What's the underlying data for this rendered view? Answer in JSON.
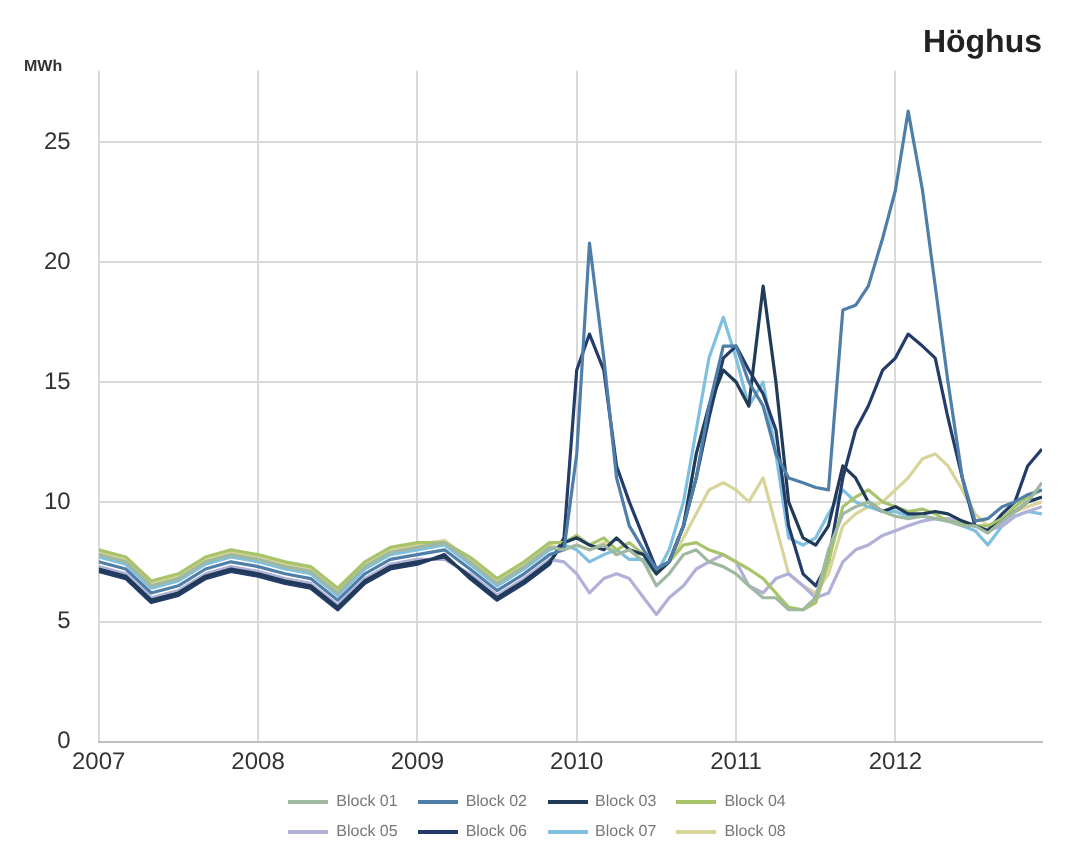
{
  "chart_data": {
    "type": "line",
    "title": "Höghus",
    "ylabel": "MWh",
    "x": [
      2007,
      2007.17,
      2007.33,
      2007.5,
      2007.67,
      2007.83,
      2008,
      2008.17,
      2008.33,
      2008.5,
      2008.67,
      2008.83,
      2009,
      2009.17,
      2009.33,
      2009.5,
      2009.67,
      2009.83,
      2009.92,
      2010,
      2010.08,
      2010.17,
      2010.25,
      2010.33,
      2010.42,
      2010.5,
      2010.58,
      2010.67,
      2010.75,
      2010.83,
      2010.92,
      2011,
      2011.08,
      2011.17,
      2011.25,
      2011.33,
      2011.42,
      2011.5,
      2011.58,
      2011.67,
      2011.75,
      2011.83,
      2011.92,
      2012,
      2012.08,
      2012.17,
      2012.25,
      2012.33,
      2012.42,
      2012.5,
      2012.58,
      2012.67,
      2012.75,
      2012.83,
      2012.92
    ],
    "series": [
      {
        "name": "Block 01",
        "color": "#9fb8a0",
        "values": [
          7.8,
          7.5,
          6.5,
          6.8,
          7.5,
          7.8,
          7.6,
          7.3,
          7.1,
          6.2,
          7.3,
          7.9,
          8.1,
          8.3,
          7.5,
          6.6,
          7.3,
          8.1,
          8.0,
          8.2,
          8.0,
          8.2,
          7.8,
          8.0,
          7.5,
          6.5,
          7.0,
          7.8,
          8.0,
          7.5,
          7.3,
          7.0,
          6.5,
          6.0,
          6.0,
          5.5,
          5.5,
          6.0,
          8.0,
          9.5,
          9.8,
          10.0,
          9.6,
          9.4,
          9.3,
          9.4,
          9.3,
          9.2,
          9.0,
          9.0,
          8.7,
          9.2,
          9.6,
          10.0,
          10.8
        ]
      },
      {
        "name": "Block 02",
        "color": "#4f7fa8",
        "values": [
          7.5,
          7.2,
          6.2,
          6.5,
          7.2,
          7.5,
          7.3,
          7.0,
          6.8,
          5.9,
          7.0,
          7.6,
          7.8,
          8.0,
          7.2,
          6.3,
          7.0,
          7.8,
          8.0,
          12,
          20.8,
          16,
          11,
          9,
          8,
          7.2,
          7.5,
          9,
          11,
          14,
          16.5,
          16.5,
          15,
          14,
          12,
          11,
          10.8,
          10.6,
          10.5,
          18,
          18.2,
          19,
          21,
          23,
          26.3,
          23,
          19,
          15,
          11,
          9.2,
          9.3,
          9.8,
          10,
          10.3,
          10.5
        ]
      },
      {
        "name": "Block 03",
        "color": "#1f3b57",
        "values": [
          7.2,
          6.9,
          5.9,
          6.2,
          6.9,
          7.2,
          7.0,
          6.7,
          6.5,
          5.6,
          6.7,
          7.3,
          7.5,
          7.7,
          6.9,
          6.0,
          6.7,
          7.5,
          8.3,
          8.5,
          8.2,
          8.0,
          8.5,
          8.0,
          7.8,
          7.0,
          7.5,
          9,
          12,
          14,
          15.5,
          15,
          14,
          19,
          15,
          10,
          8.5,
          8.2,
          9.0,
          11.5,
          11,
          10,
          9.6,
          9.8,
          9.5,
          9.5,
          9.6,
          9.5,
          9.2,
          9.0,
          8.8,
          9.2,
          9.6,
          10,
          10.2
        ]
      },
      {
        "name": "Block 04",
        "color": "#a8c46a",
        "values": [
          8.0,
          7.7,
          6.7,
          7.0,
          7.7,
          8.0,
          7.8,
          7.5,
          7.3,
          6.4,
          7.5,
          8.1,
          8.3,
          8.3,
          7.7,
          6.8,
          7.5,
          8.3,
          8.3,
          8.6,
          8.2,
          8.5,
          8.0,
          8.3,
          7.8,
          7.0,
          7.5,
          8.2,
          8.3,
          8.0,
          7.8,
          7.5,
          7.2,
          6.8,
          6.2,
          5.6,
          5.5,
          5.8,
          7.5,
          9.8,
          10.2,
          10.5,
          10.0,
          9.8,
          9.6,
          9.7,
          9.5,
          9.2,
          9.1,
          9.0,
          9.0,
          9.3,
          9.8,
          10.2,
          10.5
        ]
      },
      {
        "name": "Block 05",
        "color": "#b0b0d8",
        "values": [
          7.3,
          7.0,
          6.0,
          6.3,
          7.0,
          7.3,
          7.1,
          6.8,
          6.6,
          5.7,
          6.8,
          7.4,
          7.6,
          7.6,
          7.0,
          6.1,
          6.8,
          7.6,
          7.5,
          7.0,
          6.2,
          6.8,
          7.0,
          6.8,
          6.0,
          5.3,
          6.0,
          6.5,
          7.2,
          7.5,
          7.8,
          7.5,
          6.5,
          6.2,
          6.8,
          7.0,
          6.5,
          6.0,
          6.2,
          7.5,
          8.0,
          8.2,
          8.6,
          8.8,
          9.0,
          9.2,
          9.3,
          9.3,
          9.2,
          9.0,
          8.8,
          9.0,
          9.4,
          9.6,
          9.8
        ]
      },
      {
        "name": "Block 06",
        "color": "#243c6a",
        "values": [
          7.1,
          6.8,
          5.8,
          6.1,
          6.8,
          7.1,
          6.9,
          6.6,
          6.4,
          5.5,
          6.6,
          7.2,
          7.4,
          7.8,
          6.8,
          5.9,
          6.6,
          7.4,
          8.5,
          15.5,
          17,
          15.5,
          11.5,
          10,
          8.5,
          7.2,
          7.5,
          9,
          11,
          13.5,
          16,
          16.5,
          15.5,
          14.5,
          13,
          9,
          7.0,
          6.5,
          7.5,
          11,
          13,
          14,
          15.5,
          16.0,
          17.0,
          16.5,
          16.0,
          13.5,
          11,
          9.0,
          8.8,
          9.5,
          10,
          11.5,
          12.2
        ]
      },
      {
        "name": "Block 07",
        "color": "#7fc0e0",
        "values": [
          7.7,
          7.4,
          6.4,
          6.7,
          7.4,
          7.7,
          7.5,
          7.2,
          7.0,
          6.1,
          7.2,
          7.8,
          8.0,
          8.2,
          7.4,
          6.5,
          7.2,
          8.0,
          8.2,
          8.0,
          7.5,
          7.8,
          8.0,
          7.6,
          7.6,
          7.0,
          8.0,
          10,
          13,
          16,
          17.7,
          16,
          14,
          15,
          12,
          8.5,
          8.2,
          8.5,
          9.5,
          10.5,
          10,
          9.8,
          9.6,
          9.6,
          9.4,
          9.4,
          9.3,
          9.2,
          9.0,
          8.8,
          8.2,
          9.0,
          9.4,
          9.6,
          9.5
        ]
      },
      {
        "name": "Block 08",
        "color": "#d8d49a",
        "values": [
          7.9,
          7.6,
          6.6,
          6.9,
          7.6,
          7.9,
          7.7,
          7.4,
          7.2,
          6.3,
          7.4,
          8.0,
          8.2,
          8.4,
          7.6,
          6.7,
          7.4,
          8.2,
          8.0,
          8.2,
          8.0,
          8.3,
          7.8,
          8.0,
          7.5,
          7.0,
          7.5,
          8.5,
          9.5,
          10.5,
          10.8,
          10.5,
          10.0,
          11.0,
          9.0,
          7.0,
          6.5,
          6.2,
          7.0,
          9.0,
          9.5,
          9.8,
          10,
          10.5,
          11,
          11.8,
          12.0,
          11.5,
          10.5,
          9.5,
          9.0,
          9.3,
          9.6,
          9.8,
          10.0
        ]
      }
    ],
    "xlim": [
      2007,
      2012.92
    ],
    "xticks": [
      2007,
      2008,
      2009,
      2010,
      2011,
      2012
    ],
    "ylim": [
      0,
      28
    ],
    "yticks": [
      0,
      5,
      10,
      15,
      20,
      25
    ],
    "grid": true,
    "legend": "bottom",
    "marker": "none",
    "line_style": "solid"
  }
}
